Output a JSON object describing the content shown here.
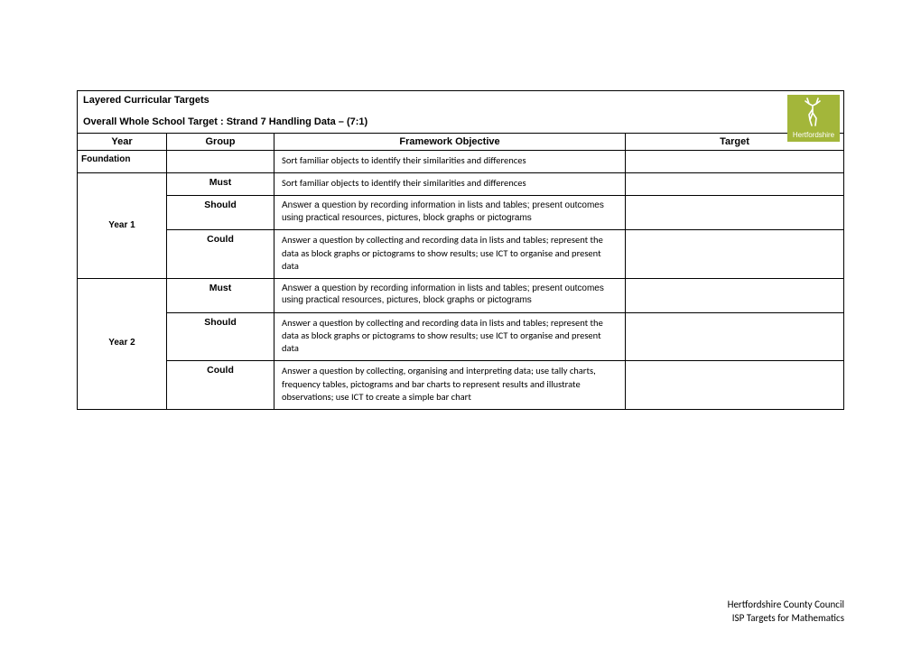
{
  "header": {
    "title1": "Layered Curricular Targets",
    "title2": "Overall Whole School Target : Strand 7 Handling Data – (7:1)",
    "logo_text": "Hertfordshire",
    "logo_bg": "#a3b63a",
    "logo_fg": "#ffffff"
  },
  "columns": {
    "year": "Year",
    "group": "Group",
    "objective": "Framework Objective",
    "target": "Target"
  },
  "rows": [
    {
      "year": "Foundation",
      "year_style": "top",
      "group": "",
      "objective": "Sort familiar objects to identify their similarities and differences",
      "obj_style": "serif",
      "target": ""
    },
    {
      "year": "Year 1",
      "year_style": "middle",
      "year_rowspan": 3,
      "group": "Must",
      "objective": "Sort familiar objects to identify their similarities and differences",
      "obj_style": "serif",
      "target": ""
    },
    {
      "group": "Should",
      "objective": "Answer a question by recording information in lists and tables; present outcomes using practical resources, pictures, block graphs or pictograms",
      "obj_style": "sans",
      "target": ""
    },
    {
      "group": "Could",
      "objective": "Answer a question by collecting and recording data in lists and tables; represent the data as block graphs or pictograms to show results; use ICT to organise and present data",
      "obj_style": "serif",
      "target": ""
    },
    {
      "year": "Year 2",
      "year_style": "middle",
      "year_rowspan": 3,
      "group": "Must",
      "objective": "Answer a question by recording information in lists and tables; present outcomes using practical resources, pictures, block graphs or pictograms",
      "obj_style": "sans",
      "target": ""
    },
    {
      "group": "Should",
      "objective": "Answer a question by collecting and recording data in lists and tables; represent the data as block graphs or pictograms to show results; use ICT to organise and present data",
      "obj_style": "serif",
      "target": ""
    },
    {
      "group": "Could",
      "objective": "Answer a question by collecting, organising and interpreting data; use tally charts, frequency tables, pictograms and bar charts to represent results and illustrate observations; use ICT to create a simple bar chart",
      "obj_style": "serif",
      "target": ""
    }
  ],
  "footer": {
    "line1": "Hertfordshire County Council",
    "line2": "ISP Targets for Mathematics"
  }
}
